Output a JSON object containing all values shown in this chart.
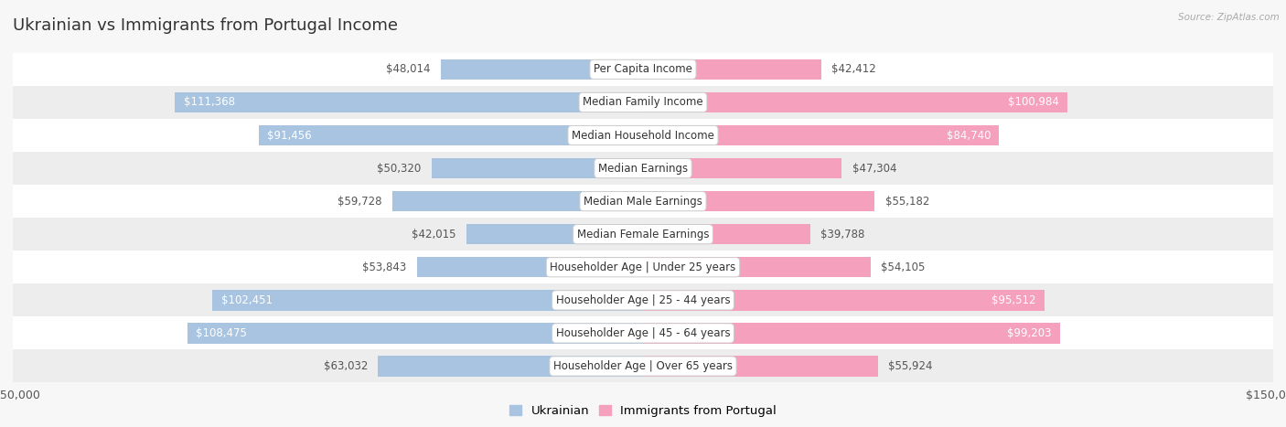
{
  "title": "Ukrainian vs Immigrants from Portugal Income",
  "source": "Source: ZipAtlas.com",
  "categories": [
    "Per Capita Income",
    "Median Family Income",
    "Median Household Income",
    "Median Earnings",
    "Median Male Earnings",
    "Median Female Earnings",
    "Householder Age | Under 25 years",
    "Householder Age | 25 - 44 years",
    "Householder Age | 45 - 64 years",
    "Householder Age | Over 65 years"
  ],
  "ukrainian_values": [
    48014,
    111368,
    91456,
    50320,
    59728,
    42015,
    53843,
    102451,
    108475,
    63032
  ],
  "portugal_values": [
    42412,
    100984,
    84740,
    47304,
    55182,
    39788,
    54105,
    95512,
    99203,
    55924
  ],
  "ukrainian_labels": [
    "$48,014",
    "$111,368",
    "$91,456",
    "$50,320",
    "$59,728",
    "$42,015",
    "$53,843",
    "$102,451",
    "$108,475",
    "$63,032"
  ],
  "portugal_labels": [
    "$42,412",
    "$100,984",
    "$84,740",
    "$47,304",
    "$55,182",
    "$39,788",
    "$54,105",
    "$95,512",
    "$99,203",
    "$55,924"
  ],
  "ukrainian_color": "#a8c4e0",
  "portugal_color": "#f5a0bc",
  "max_value": 150000,
  "background_color": "#f7f7f7",
  "row_colors": [
    "#ffffff",
    "#ededee"
  ],
  "title_fontsize": 13,
  "label_fontsize": 8.5,
  "tick_fontsize": 9,
  "legend_fontsize": 9.5,
  "white_label_threshold": 65000
}
